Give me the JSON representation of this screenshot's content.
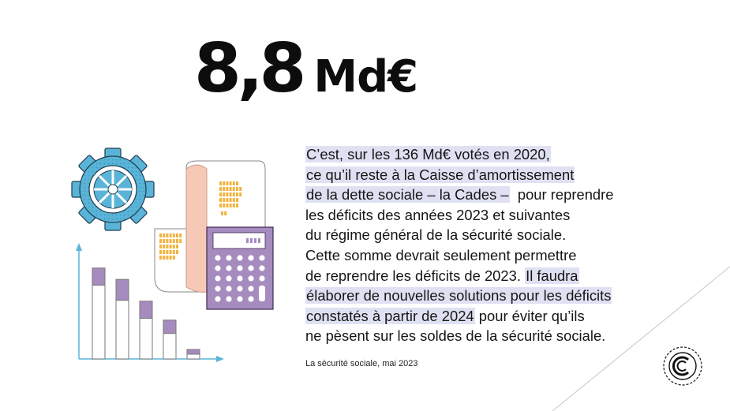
{
  "headline": {
    "value": "8,8",
    "unit": "Md€"
  },
  "quote": {
    "l1": "C’est, sur les 136 Md€ votés en 2020,",
    "l2": "ce qu’il reste à la Caisse d’amortissement",
    "l3a": "de la dette sociale – la Cades –",
    "l3b": "  pour reprendre",
    "l4": "les déficits des années 2023 et suivantes",
    "l5": "du régime général de la sécurité sociale.",
    "l6": "Cette somme devrait seulement permettre",
    "l7a": "de reprendre les déficits de 2023. ",
    "l7b": "Il faudra",
    "l8": "élaborer de nouvelles solutions pour les déficits",
    "l9a": "constatés à partir de 2024",
    "l9b": " pour éviter qu’ils",
    "l10": "ne pèsent sur les soldes de la sécurité sociale."
  },
  "source": "La sécurité sociale, mai 2023",
  "colors": {
    "highlight": "#dfe1f3",
    "gear": "#5ab4d8",
    "calculator": "#a68bbf",
    "receipt": "#f5c9b6",
    "digits": "#f2b33d",
    "bars": "#a68bbf"
  },
  "bar_levels": [
    {
      "bar": 0.78,
      "cap": 0.18
    },
    {
      "bar": 0.62,
      "cap": 0.22
    },
    {
      "bar": 0.43,
      "cap": 0.18
    },
    {
      "bar": 0.27,
      "cap": 0.14
    },
    {
      "bar": 0.05,
      "cap": 0.05
    }
  ],
  "icons": {
    "gear": "gear-icon",
    "receipt": "receipt-icon",
    "calculator": "calculator-icon",
    "chart": "bar-chart-icon",
    "logo": "emblem-logo-icon"
  }
}
